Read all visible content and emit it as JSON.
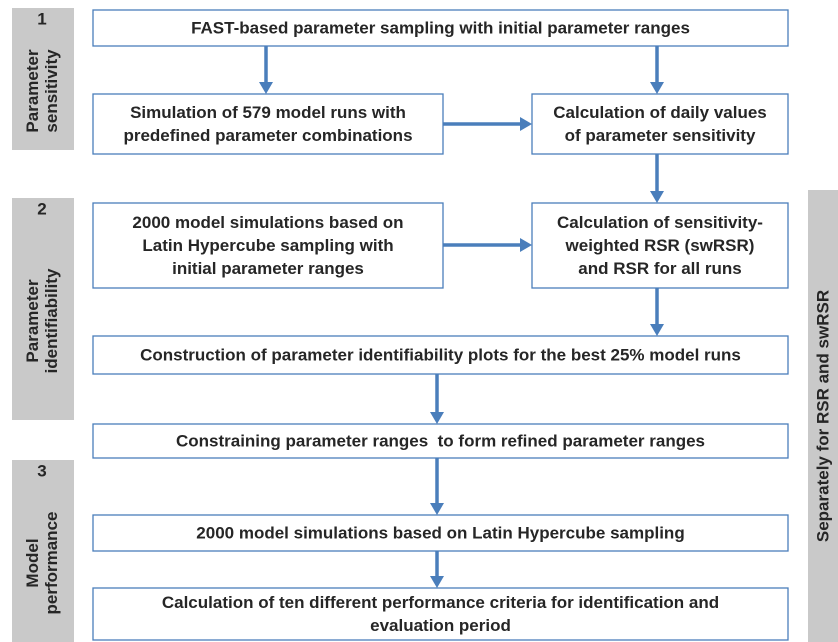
{
  "stages": [
    {
      "number": "1",
      "label": [
        "Parameter",
        "sensitivity"
      ]
    },
    {
      "number": "2",
      "label": [
        "Parameter",
        "identifiability"
      ]
    },
    {
      "number": "3",
      "label": [
        "Model",
        "performance"
      ]
    }
  ],
  "side_note": "Separately for RSR and swRSR",
  "nodes": [
    {
      "lines": [
        "FAST-based parameter sampling with initial parameter ranges"
      ]
    },
    {
      "lines": [
        "Simulation of 579 model runs with",
        "predefined parameter combinations"
      ]
    },
    {
      "lines": [
        "Calculation of daily values",
        "of parameter sensitivity"
      ]
    },
    {
      "lines": [
        "2000 model simulations based on",
        "Latin Hypercube sampling with",
        "initial parameter ranges"
      ]
    },
    {
      "lines": [
        "Calculation of sensitivity-",
        "weighted RSR (swRSR)",
        "and RSR for all runs"
      ]
    },
    {
      "lines": [
        "Construction of parameter identifiability plots for the best 25% model runs"
      ]
    },
    {
      "lines": [
        "Constraining parameter ranges  to form refined parameter ranges"
      ]
    },
    {
      "lines": [
        "2000 model simulations based on Latin Hypercube sampling"
      ]
    },
    {
      "lines": [
        "Calculation of ten different performance criteria for identification and",
        "evaluation period"
      ]
    }
  ]
}
